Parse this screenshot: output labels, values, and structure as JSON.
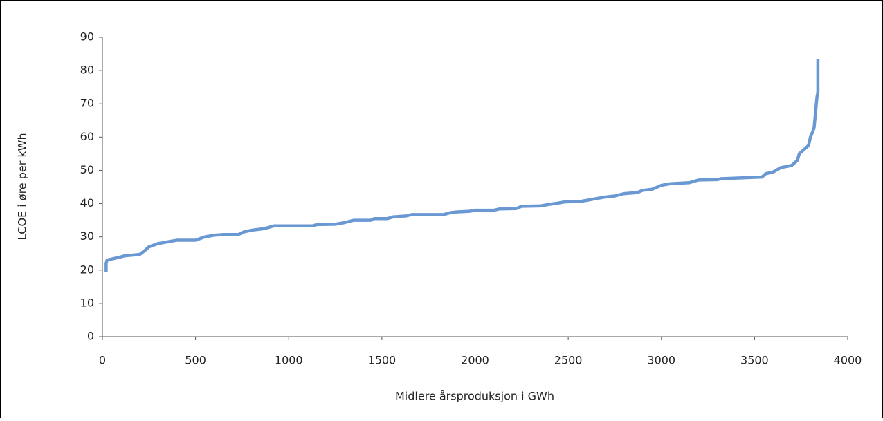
{
  "chart_data": {
    "type": "line",
    "xlabel": "Midlere årsproduksjon i GWh",
    "ylabel": "LCOE i øre per kWh",
    "xlim": [
      0,
      4000
    ],
    "xticks": [
      0,
      500,
      1000,
      1500,
      2000,
      2500,
      3000,
      3500,
      4000
    ],
    "ylim": [
      0,
      90
    ],
    "yticks": [
      0,
      10,
      20,
      30,
      40,
      50,
      60,
      70,
      80,
      90
    ],
    "series": [
      {
        "color": "#6a98d3",
        "x": [
          20,
          20,
          25,
          100,
          120,
          200,
          230,
          250,
          300,
          350,
          400,
          500,
          550,
          600,
          650,
          730,
          760,
          800,
          870,
          920,
          1000,
          1130,
          1150,
          1250,
          1300,
          1350,
          1440,
          1460,
          1530,
          1560,
          1630,
          1660,
          1830,
          1870,
          1900,
          1970,
          2000,
          2100,
          2130,
          2220,
          2250,
          2350,
          2400,
          2450,
          2480,
          2570,
          2600,
          2650,
          2700,
          2750,
          2800,
          2870,
          2900,
          2950,
          3000,
          3050,
          3150,
          3200,
          3300,
          3320,
          3540,
          3560,
          3600,
          3640,
          3700,
          3730,
          3740,
          3760,
          3790,
          3800,
          3815,
          3820,
          3825,
          3830,
          3835,
          3840,
          3840
        ],
        "values": [
          19.5,
          22,
          23,
          24,
          24.3,
          24.7,
          26,
          27,
          28,
          28.5,
          29,
          29,
          30,
          30.5,
          30.7,
          30.7,
          31.5,
          32,
          32.5,
          33.3,
          33.3,
          33.3,
          33.7,
          33.8,
          34.3,
          35,
          35,
          35.5,
          35.5,
          36,
          36.3,
          36.7,
          36.7,
          37.3,
          37.5,
          37.7,
          38,
          38,
          38.4,
          38.5,
          39.2,
          39.3,
          39.8,
          40.2,
          40.5,
          40.7,
          41,
          41.5,
          42,
          42.3,
          43,
          43.3,
          44,
          44.3,
          45.5,
          46,
          46.3,
          47.1,
          47.2,
          47.5,
          48,
          49,
          49.5,
          50.8,
          51.5,
          53,
          55,
          56,
          57.5,
          60,
          62,
          63,
          66,
          69,
          72,
          73.5,
          83.5
        ]
      }
    ]
  }
}
